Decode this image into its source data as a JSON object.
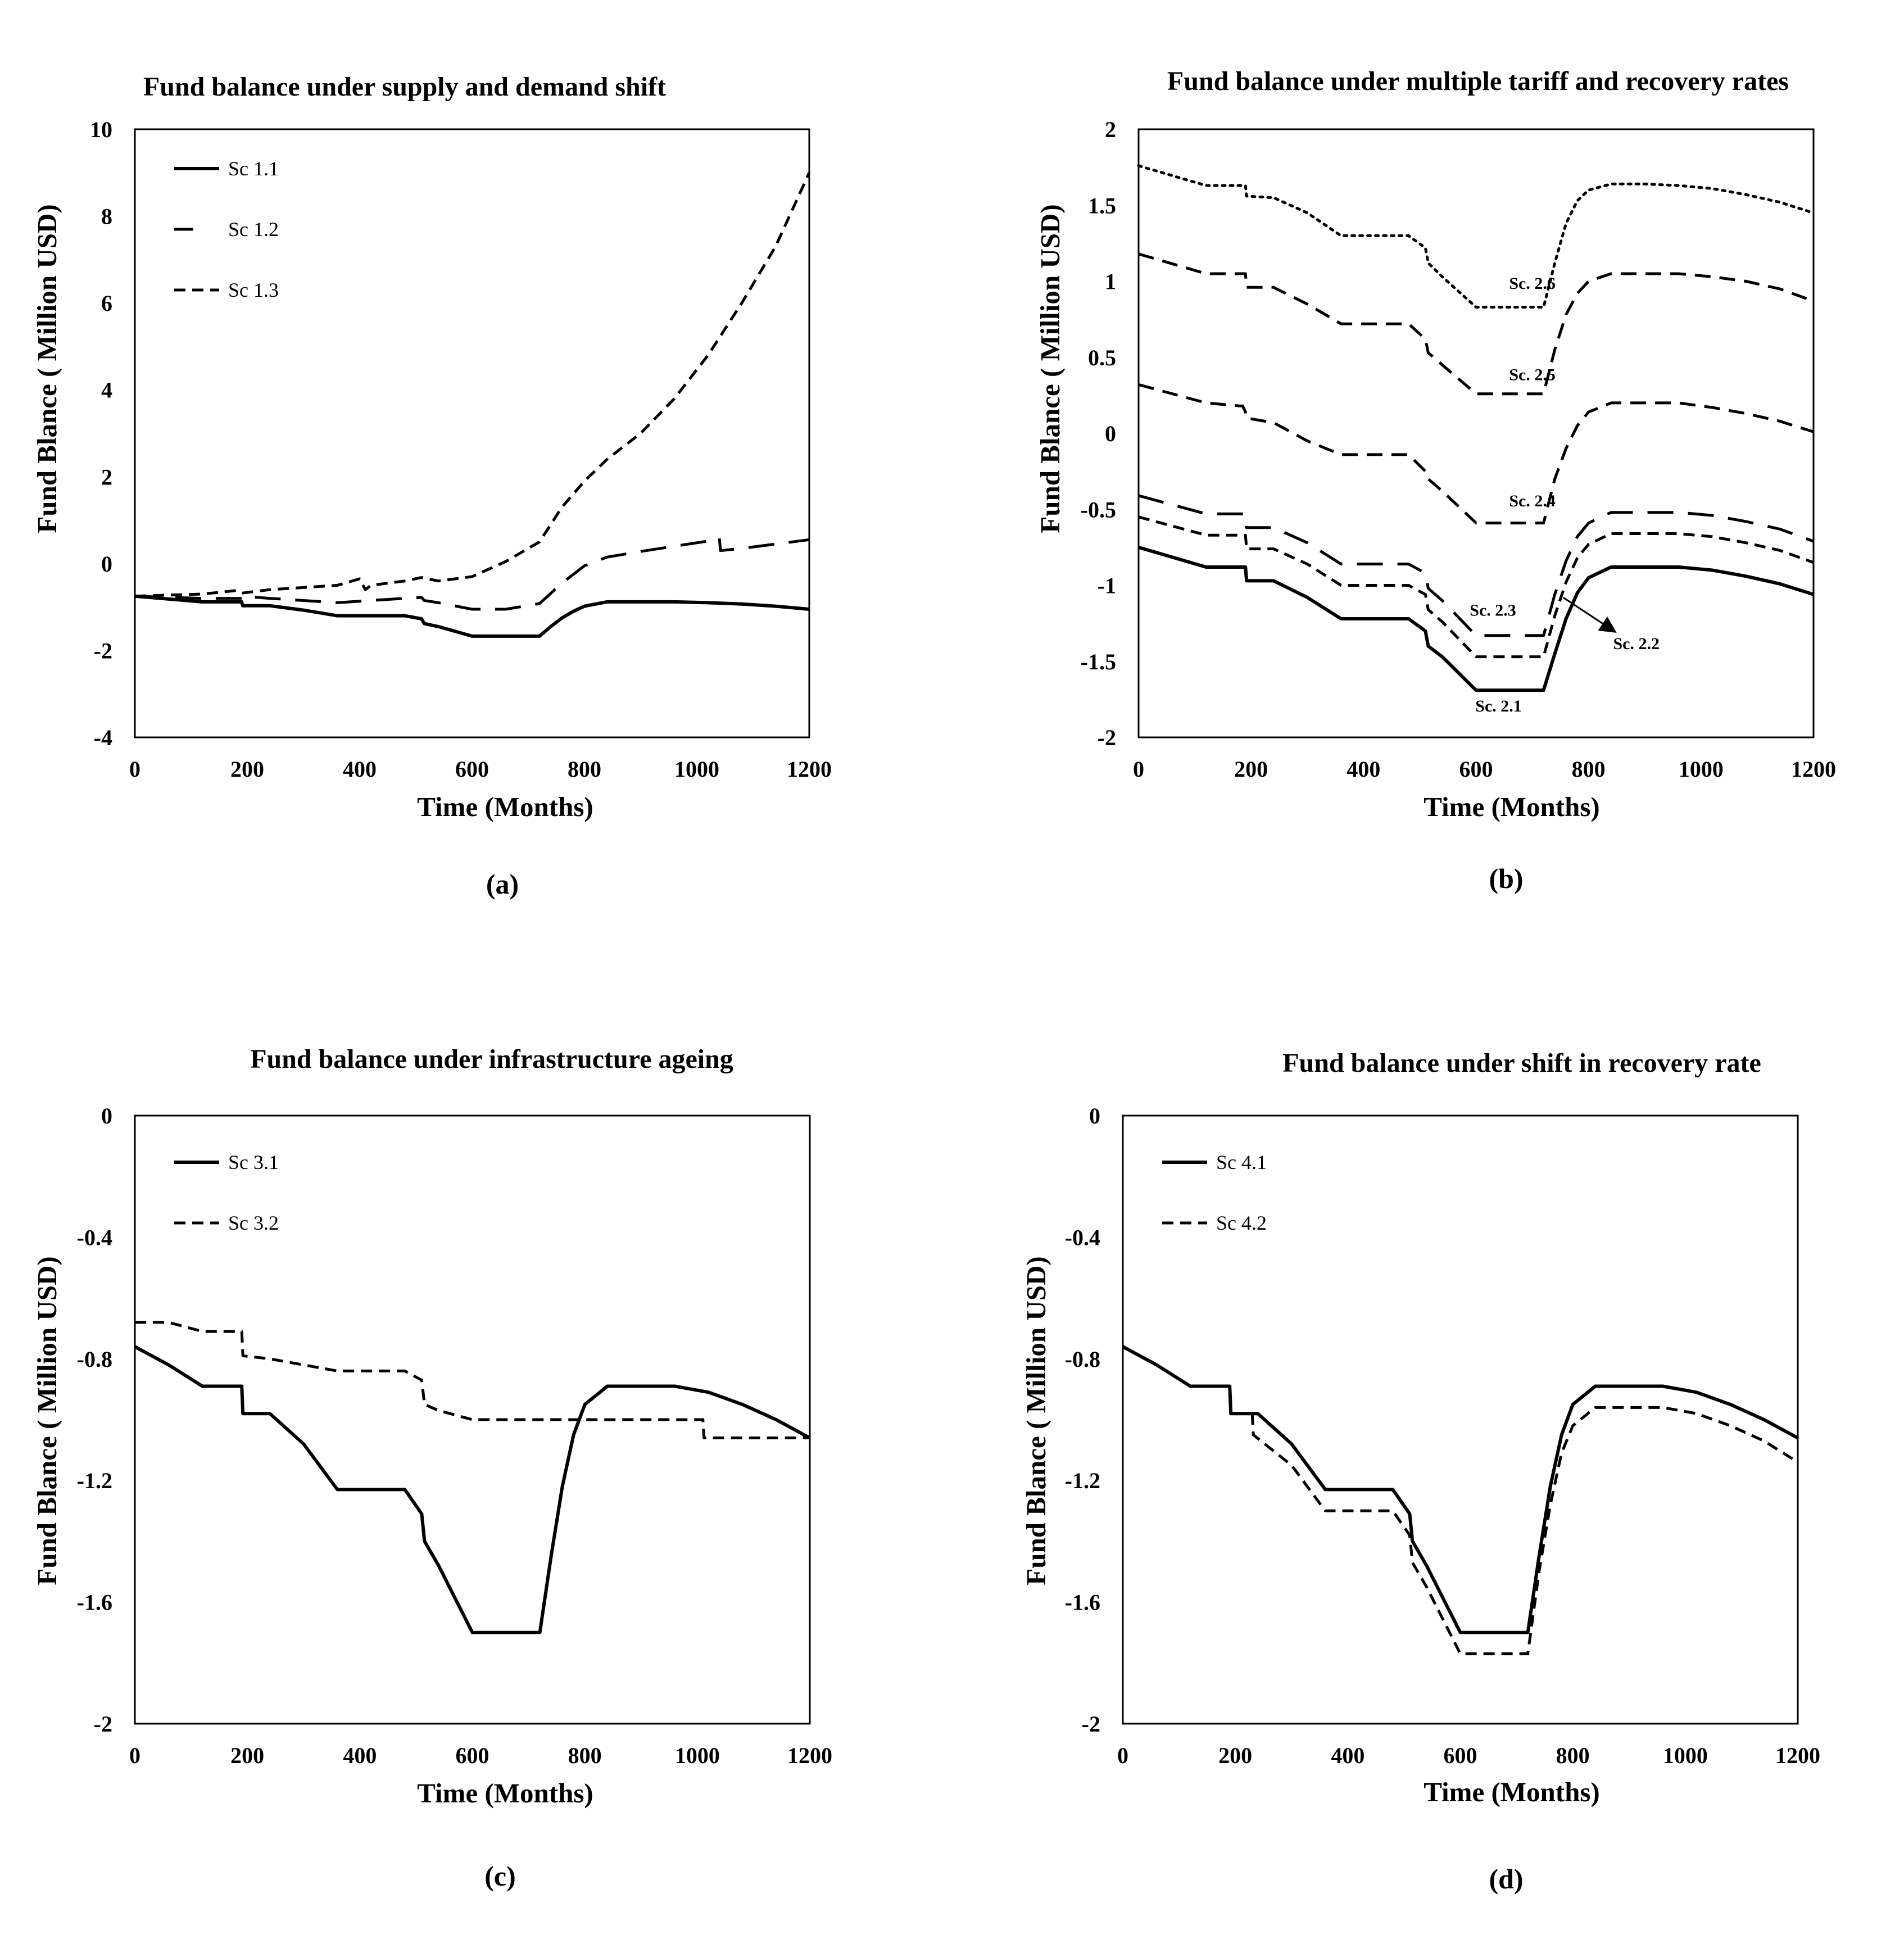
{
  "chart_data": [
    {
      "type": "line",
      "title": "Fund balance under supply and demand shift",
      "xlabel": "Time (Months)",
      "ylabel": "Fund Blance ( Million USD)",
      "panel_label": "(a)",
      "xlim": [
        0,
        1200
      ],
      "ylim": [
        -4,
        10
      ],
      "xticks": [
        0,
        200,
        400,
        600,
        800,
        1000,
        1200
      ],
      "yticks": [
        -4,
        -2,
        0,
        2,
        4,
        6,
        8,
        10
      ],
      "grid": false,
      "legend": "top-left",
      "series": [
        {
          "name": "Sc 1.1",
          "style": "solid",
          "x": [
            0,
            120,
            190,
            192,
            240,
            300,
            360,
            420,
            480,
            510,
            515,
            540,
            600,
            660,
            720,
            740,
            760,
            780,
            800,
            840,
            900,
            960,
            1020,
            1080,
            1140,
            1200
          ],
          "y": [
            -0.75,
            -0.88,
            -0.88,
            -0.97,
            -0.97,
            -1.07,
            -1.2,
            -1.2,
            -1.2,
            -1.27,
            -1.38,
            -1.45,
            -1.67,
            -1.67,
            -1.67,
            -1.45,
            -1.25,
            -1.1,
            -0.98,
            -0.88,
            -0.88,
            -0.88,
            -0.9,
            -0.93,
            -0.98,
            -1.05
          ]
        },
        {
          "name": "Sc 1.2",
          "style": "long-dash",
          "x": [
            0,
            120,
            190,
            192,
            240,
            300,
            360,
            420,
            480,
            510,
            515,
            540,
            600,
            660,
            720,
            760,
            800,
            840,
            900,
            960,
            1020,
            1040,
            1042,
            1080,
            1140,
            1200
          ],
          "y": [
            -0.75,
            -0.8,
            -0.8,
            -0.75,
            -0.8,
            -0.85,
            -0.9,
            -0.85,
            -0.8,
            -0.78,
            -0.85,
            -0.9,
            -1.05,
            -1.05,
            -0.92,
            -0.45,
            -0.05,
            0.15,
            0.28,
            0.4,
            0.52,
            0.6,
            0.3,
            0.35,
            0.45,
            0.55
          ]
        },
        {
          "name": "Sc 1.3",
          "style": "short-dash",
          "x": [
            0,
            120,
            180,
            190,
            240,
            300,
            360,
            400,
            410,
            420,
            480,
            510,
            540,
            600,
            660,
            720,
            760,
            800,
            840,
            900,
            960,
            1020,
            1080,
            1140,
            1200
          ],
          "y": [
            -0.75,
            -0.7,
            -0.62,
            -0.68,
            -0.6,
            -0.55,
            -0.5,
            -0.35,
            -0.6,
            -0.5,
            -0.4,
            -0.32,
            -0.4,
            -0.3,
            0.05,
            0.5,
            1.3,
            1.9,
            2.4,
            3.0,
            3.8,
            4.8,
            6.0,
            7.3,
            9.0
          ]
        }
      ]
    },
    {
      "type": "line",
      "title": "Fund balance under multiple tariff and recovery rates",
      "xlabel": "Time (Months)",
      "ylabel": "Fund Blance ( Million USD)",
      "panel_label": "(b)",
      "xlim": [
        0,
        1200
      ],
      "ylim": [
        -2,
        2
      ],
      "xticks": [
        0,
        200,
        400,
        600,
        800,
        1000,
        1200
      ],
      "yticks": [
        -2,
        -1.5,
        -1,
        -0.5,
        0,
        0.5,
        1,
        1.5,
        2
      ],
      "grid": false,
      "legend": "none",
      "series": [
        {
          "name": "Sc. 2.1",
          "style": "solid",
          "x": [
            0,
            120,
            190,
            192,
            240,
            300,
            360,
            420,
            480,
            510,
            515,
            540,
            600,
            660,
            720,
            740,
            760,
            780,
            800,
            840,
            900,
            960,
            1020,
            1080,
            1140,
            1200
          ],
          "y": [
            -0.75,
            -0.88,
            -0.88,
            -0.97,
            -0.97,
            -1.08,
            -1.22,
            -1.22,
            -1.22,
            -1.3,
            -1.4,
            -1.47,
            -1.69,
            -1.69,
            -1.69,
            -1.45,
            -1.22,
            -1.05,
            -0.95,
            -0.88,
            -0.88,
            -0.88,
            -0.9,
            -0.94,
            -0.99,
            -1.06
          ]
        },
        {
          "name": "Sc. 2.2",
          "style": "short-dash",
          "x": [
            0,
            120,
            190,
            192,
            240,
            300,
            360,
            420,
            480,
            510,
            515,
            540,
            600,
            660,
            720,
            740,
            760,
            780,
            800,
            840,
            900,
            960,
            1020,
            1080,
            1140,
            1200
          ],
          "y": [
            -0.55,
            -0.67,
            -0.67,
            -0.76,
            -0.76,
            -0.86,
            -1.0,
            -1.0,
            -1.0,
            -1.06,
            -1.16,
            -1.24,
            -1.47,
            -1.47,
            -1.47,
            -1.2,
            -0.98,
            -0.82,
            -0.73,
            -0.66,
            -0.66,
            -0.66,
            -0.68,
            -0.72,
            -0.77,
            -0.85
          ]
        },
        {
          "name": "Sc. 2.3",
          "style": "long-dash",
          "x": [
            0,
            120,
            190,
            192,
            240,
            300,
            360,
            420,
            480,
            510,
            515,
            540,
            600,
            660,
            720,
            740,
            760,
            780,
            800,
            840,
            900,
            960,
            1020,
            1080,
            1140,
            1200
          ],
          "y": [
            -0.41,
            -0.53,
            -0.53,
            -0.62,
            -0.62,
            -0.72,
            -0.86,
            -0.86,
            -0.86,
            -0.92,
            -1.02,
            -1.1,
            -1.33,
            -1.33,
            -1.33,
            -1.06,
            -0.84,
            -0.68,
            -0.59,
            -0.52,
            -0.52,
            -0.52,
            -0.54,
            -0.58,
            -0.63,
            -0.71
          ]
        },
        {
          "name": "Sc. 2.4",
          "style": "dash",
          "x": [
            0,
            120,
            180,
            185,
            190,
            192,
            240,
            300,
            360,
            420,
            480,
            510,
            515,
            540,
            600,
            660,
            720,
            740,
            760,
            780,
            800,
            840,
            900,
            960,
            1020,
            1080,
            1140,
            1200
          ],
          "y": [
            0.32,
            0.2,
            0.18,
            0.18,
            0.14,
            0.1,
            0.07,
            -0.05,
            -0.14,
            -0.14,
            -0.14,
            -0.25,
            -0.3,
            -0.38,
            -0.59,
            -0.59,
            -0.59,
            -0.3,
            -0.1,
            0.05,
            0.14,
            0.2,
            0.2,
            0.2,
            0.17,
            0.13,
            0.08,
            0.01
          ]
        },
        {
          "name": "Sc. 2.5",
          "style": "dash",
          "x": [
            0,
            120,
            190,
            192,
            240,
            300,
            360,
            420,
            480,
            510,
            515,
            540,
            600,
            660,
            720,
            740,
            760,
            780,
            800,
            840,
            900,
            960,
            1020,
            1080,
            1140,
            1200
          ],
          "y": [
            1.18,
            1.05,
            1.05,
            0.96,
            0.96,
            0.85,
            0.72,
            0.72,
            0.72,
            0.62,
            0.53,
            0.45,
            0.26,
            0.26,
            0.26,
            0.55,
            0.78,
            0.92,
            1.0,
            1.05,
            1.05,
            1.05,
            1.03,
            1.0,
            0.95,
            0.87
          ]
        },
        {
          "name": "Sc. 2.6",
          "style": "dotted",
          "x": [
            0,
            120,
            190,
            192,
            240,
            300,
            360,
            420,
            480,
            510,
            515,
            540,
            600,
            660,
            720,
            740,
            760,
            780,
            800,
            840,
            900,
            960,
            1020,
            1080,
            1140,
            1200
          ],
          "y": [
            1.76,
            1.63,
            1.63,
            1.56,
            1.55,
            1.45,
            1.3,
            1.3,
            1.3,
            1.22,
            1.12,
            1.03,
            0.83,
            0.83,
            0.83,
            1.12,
            1.38,
            1.53,
            1.6,
            1.64,
            1.64,
            1.63,
            1.61,
            1.57,
            1.52,
            1.45
          ]
        }
      ],
      "annotations": [
        {
          "text": "Sc. 2.6",
          "x": 700,
          "y": 0.95
        },
        {
          "text": "Sc. 2.5",
          "x": 700,
          "y": 0.35
        },
        {
          "text": "Sc. 2.4",
          "x": 700,
          "y": -0.48
        },
        {
          "text": "Sc. 2.3",
          "x": 630,
          "y": -1.2
        },
        {
          "text": "Sc. 2.2",
          "x": 885,
          "y": -1.42
        },
        {
          "text": "Sc. 2.1",
          "x": 640,
          "y": -1.83
        }
      ]
    },
    {
      "type": "line",
      "title": "Fund balance under infrastructure ageing",
      "xlabel": "Time (Months)",
      "ylabel": "Fund Blance ( Million USD)",
      "panel_label": "(c)",
      "xlim": [
        0,
        1200
      ],
      "ylim": [
        -2,
        0
      ],
      "xticks": [
        0,
        200,
        400,
        600,
        800,
        1000,
        1200
      ],
      "yticks": [
        -2,
        -1.6,
        -1.2,
        -0.8,
        -0.4,
        0
      ],
      "ytick_labels": [
        "-2",
        "-1.6",
        "-1.2",
        "-0.8",
        "-0.4",
        "0"
      ],
      "grid": false,
      "legend": "top-left",
      "series": [
        {
          "name": "Sc 3.1",
          "style": "solid",
          "x": [
            0,
            60,
            120,
            190,
            192,
            240,
            300,
            360,
            420,
            480,
            510,
            515,
            540,
            600,
            660,
            720,
            740,
            760,
            780,
            800,
            840,
            900,
            960,
            1020,
            1080,
            1140,
            1200
          ],
          "y": [
            -0.76,
            -0.82,
            -0.89,
            -0.89,
            -0.98,
            -0.98,
            -1.08,
            -1.23,
            -1.23,
            -1.23,
            -1.31,
            -1.4,
            -1.48,
            -1.7,
            -1.7,
            -1.7,
            -1.45,
            -1.22,
            -1.05,
            -0.95,
            -0.89,
            -0.89,
            -0.89,
            -0.91,
            -0.95,
            -1.0,
            -1.06
          ]
        },
        {
          "name": "Sc 3.2",
          "style": "short-dash",
          "x": [
            0,
            60,
            120,
            190,
            192,
            240,
            300,
            360,
            420,
            480,
            510,
            515,
            540,
            600,
            660,
            720,
            780,
            840,
            900,
            960,
            1010,
            1012,
            1060,
            1120,
            1200
          ],
          "y": [
            -0.68,
            -0.68,
            -0.71,
            -0.71,
            -0.79,
            -0.8,
            -0.82,
            -0.84,
            -0.84,
            -0.84,
            -0.87,
            -0.95,
            -0.97,
            -1.0,
            -1.0,
            -1.0,
            -1.0,
            -1.0,
            -1.0,
            -1.0,
            -1.0,
            -1.06,
            -1.06,
            -1.06,
            -1.06
          ]
        }
      ]
    },
    {
      "type": "line",
      "title": "Fund balance under shift in recovery rate",
      "xlabel": "Time (Months)",
      "ylabel": "Fund Blance ( Million USD)",
      "panel_label": "(d)",
      "xlim": [
        0,
        1200
      ],
      "ylim": [
        -2,
        0
      ],
      "xticks": [
        0,
        200,
        400,
        600,
        800,
        1000,
        1200
      ],
      "yticks": [
        -2,
        -1.6,
        -1.2,
        -0.8,
        -0.4,
        0
      ],
      "ytick_labels": [
        "-2",
        "-1.6",
        "-1.2",
        "-0.8",
        "-0.4",
        "0"
      ],
      "grid": false,
      "legend": "top-left",
      "series": [
        {
          "name": "Sc 4.1",
          "style": "solid",
          "x": [
            0,
            60,
            120,
            190,
            192,
            240,
            300,
            360,
            420,
            480,
            510,
            515,
            540,
            600,
            660,
            720,
            740,
            760,
            780,
            800,
            840,
            900,
            960,
            1020,
            1080,
            1140,
            1200
          ],
          "y": [
            -0.76,
            -0.82,
            -0.89,
            -0.89,
            -0.98,
            -0.98,
            -1.08,
            -1.23,
            -1.23,
            -1.23,
            -1.31,
            -1.4,
            -1.48,
            -1.7,
            -1.7,
            -1.7,
            -1.45,
            -1.22,
            -1.05,
            -0.95,
            -0.89,
            -0.89,
            -0.89,
            -0.91,
            -0.95,
            -1.0,
            -1.06
          ]
        },
        {
          "name": "Sc 4.2",
          "style": "short-dash",
          "x": [
            230,
            232,
            300,
            360,
            420,
            480,
            510,
            515,
            540,
            600,
            660,
            720,
            740,
            760,
            780,
            800,
            840,
            900,
            960,
            1020,
            1080,
            1140,
            1200
          ],
          "y": [
            -0.98,
            -1.05,
            -1.15,
            -1.3,
            -1.3,
            -1.3,
            -1.38,
            -1.47,
            -1.55,
            -1.77,
            -1.77,
            -1.77,
            -1.5,
            -1.28,
            -1.11,
            -1.02,
            -0.96,
            -0.96,
            -0.96,
            -0.98,
            -1.02,
            -1.07,
            -1.14
          ]
        }
      ]
    }
  ]
}
